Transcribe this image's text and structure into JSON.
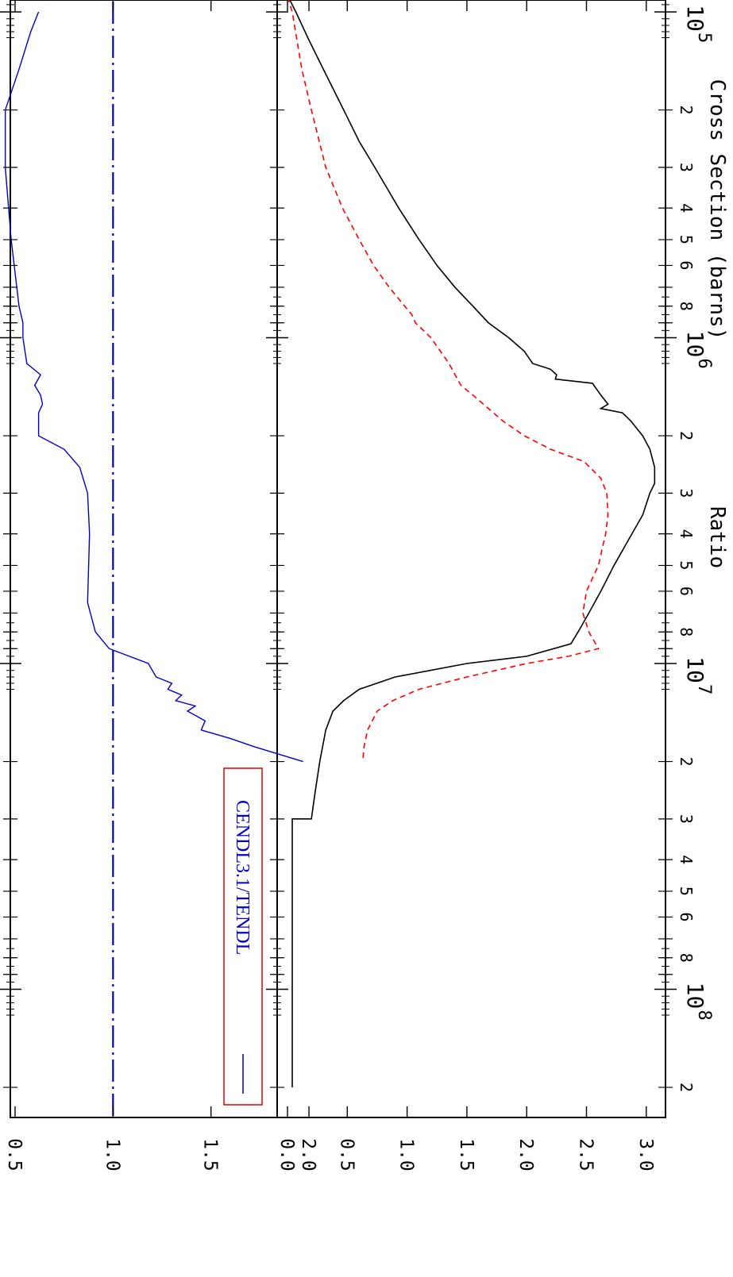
{
  "chart_data": [
    {
      "type": "line",
      "ylabel": "Cross Section (barns)",
      "xscale": "log",
      "xlim": [
        90000,
        210000000
      ],
      "ylim": [
        -0.1,
        3.2
      ],
      "yticks": [
        0.0,
        0.5,
        1.0,
        1.5,
        2.0,
        2.5,
        3.0
      ],
      "ytick_labels": [
        "0.0",
        "0.5",
        "1.0",
        "1.5",
        "2.0",
        "2.5",
        "3.0"
      ],
      "series": [
        {
          "color": "#000000",
          "style": "solid",
          "points": [
            [
              92000,
              0.02
            ],
            [
              100000,
              0.07
            ],
            [
              120000,
              0.17
            ],
            [
              150000,
              0.3
            ],
            [
              200000,
              0.47
            ],
            [
              250000,
              0.6
            ],
            [
              300000,
              0.73
            ],
            [
              400000,
              0.93
            ],
            [
              500000,
              1.1
            ],
            [
              600000,
              1.25
            ],
            [
              700000,
              1.4
            ],
            [
              800000,
              1.55
            ],
            [
              900000,
              1.68
            ],
            [
              1000000,
              1.85
            ],
            [
              1100000,
              1.98
            ],
            [
              1200000,
              2.05
            ],
            [
              1250000,
              2.2
            ],
            [
              1300000,
              2.25
            ],
            [
              1340000,
              2.24
            ],
            [
              1380000,
              2.55
            ],
            [
              1500000,
              2.62
            ],
            [
              1600000,
              2.68
            ],
            [
              1650000,
              2.62
            ],
            [
              1700000,
              2.8
            ],
            [
              1800000,
              2.87
            ],
            [
              2000000,
              2.97
            ],
            [
              2200000,
              3.03
            ],
            [
              2500000,
              3.07
            ],
            [
              2800000,
              3.07
            ],
            [
              3000000,
              3.03
            ],
            [
              3500000,
              2.97
            ],
            [
              4000000,
              2.88
            ],
            [
              5000000,
              2.73
            ],
            [
              6000000,
              2.62
            ],
            [
              7000000,
              2.52
            ],
            [
              8000000,
              2.43
            ],
            [
              8700000,
              2.37
            ],
            [
              9500000,
              2.0
            ],
            [
              10000000,
              1.5
            ],
            [
              11000000,
              0.9
            ],
            [
              12000000,
              0.6
            ],
            [
              13000000,
              0.47
            ],
            [
              14000000,
              0.38
            ],
            [
              16000000,
              0.32
            ],
            [
              20000000,
              0.27
            ],
            [
              25000000,
              0.23
            ],
            [
              30000000,
              0.2
            ],
            [
              30000000,
              0.04
            ],
            [
              200000000,
              0.04
            ]
          ]
        },
        {
          "color": "#ff0000",
          "style": "dashed",
          "points": [
            [
              90000,
              0.0
            ],
            [
              100000,
              0.04
            ],
            [
              150000,
              0.12
            ],
            [
              200000,
              0.2
            ],
            [
              300000,
              0.32
            ],
            [
              400000,
              0.46
            ],
            [
              500000,
              0.6
            ],
            [
              600000,
              0.72
            ],
            [
              700000,
              0.85
            ],
            [
              800000,
              0.98
            ],
            [
              850000,
              1.04
            ],
            [
              900000,
              1.07
            ],
            [
              1000000,
              1.2
            ],
            [
              1200000,
              1.35
            ],
            [
              1400000,
              1.45
            ],
            [
              1500000,
              1.55
            ],
            [
              1800000,
              1.8
            ],
            [
              2000000,
              1.98
            ],
            [
              2200000,
              2.2
            ],
            [
              2400000,
              2.48
            ],
            [
              2700000,
              2.62
            ],
            [
              3000000,
              2.67
            ],
            [
              3500000,
              2.68
            ],
            [
              4000000,
              2.66
            ],
            [
              5000000,
              2.6
            ],
            [
              6000000,
              2.5
            ],
            [
              7000000,
              2.47
            ],
            [
              8000000,
              2.52
            ],
            [
              9000000,
              2.6
            ],
            [
              9500000,
              2.35
            ],
            [
              10000000,
              2.0
            ],
            [
              11000000,
              1.5
            ],
            [
              12000000,
              1.1
            ],
            [
              13000000,
              0.88
            ],
            [
              14000000,
              0.75
            ],
            [
              16000000,
              0.67
            ],
            [
              18000000,
              0.64
            ],
            [
              20000000,
              0.63
            ]
          ]
        }
      ]
    },
    {
      "type": "line",
      "ylabel": "Ratio",
      "xscale": "log",
      "xlim": [
        90000,
        210000000
      ],
      "ylim": [
        0.3,
        2.5
      ],
      "yticks": [
        0.5,
        1.0,
        1.5,
        2.0
      ],
      "ytick_labels": [
        "0.5",
        "1.0",
        "1.5",
        "2.0"
      ],
      "xticks_major": [
        100000,
        1000000,
        10000000,
        100000000
      ],
      "xtick_major_exponents": [
        "5",
        "6",
        "7",
        "8"
      ],
      "xtick_major_base": "10",
      "xtick_minor_labels": [
        "2",
        "3",
        "4",
        "5",
        "6",
        "8"
      ],
      "xtick_minor_labels_top": [
        "2"
      ],
      "legend": {
        "position": "top-left",
        "entries": [
          "CENDL3.1/TENDL"
        ]
      },
      "reference_line": {
        "y": 1.0,
        "color": "#0000cc",
        "style": "dash-dot"
      },
      "series": [
        {
          "name": "CENDL3.1/TENDL",
          "color": "#0000cc",
          "style": "solid",
          "points": [
            [
              100000,
              0.62
            ],
            [
              115000,
              0.58
            ],
            [
              150000,
              0.52
            ],
            [
              200000,
              0.45
            ],
            [
              300000,
              0.45
            ],
            [
              500000,
              0.48
            ],
            [
              800000,
              0.52
            ],
            [
              900000,
              0.54
            ],
            [
              1000000,
              0.54
            ],
            [
              1200000,
              0.56
            ],
            [
              1300000,
              0.63
            ],
            [
              1400000,
              0.6
            ],
            [
              1500000,
              0.63
            ],
            [
              1600000,
              0.64
            ],
            [
              1700000,
              0.62
            ],
            [
              2000000,
              0.62
            ],
            [
              2200000,
              0.75
            ],
            [
              2500000,
              0.83
            ],
            [
              3000000,
              0.87
            ],
            [
              4000000,
              0.88
            ],
            [
              6500000,
              0.87
            ],
            [
              8000000,
              0.91
            ],
            [
              9000000,
              0.98
            ],
            [
              10000000,
              1.18
            ],
            [
              11000000,
              1.22
            ],
            [
              11500000,
              1.3
            ],
            [
              12000000,
              1.28
            ],
            [
              12500000,
              1.35
            ],
            [
              13000000,
              1.32
            ],
            [
              13500000,
              1.42
            ],
            [
              14000000,
              1.38
            ],
            [
              15000000,
              1.47
            ],
            [
              16000000,
              1.45
            ],
            [
              17000000,
              1.6
            ],
            [
              18000000,
              1.72
            ],
            [
              20000000,
              1.97
            ]
          ]
        }
      ]
    }
  ]
}
